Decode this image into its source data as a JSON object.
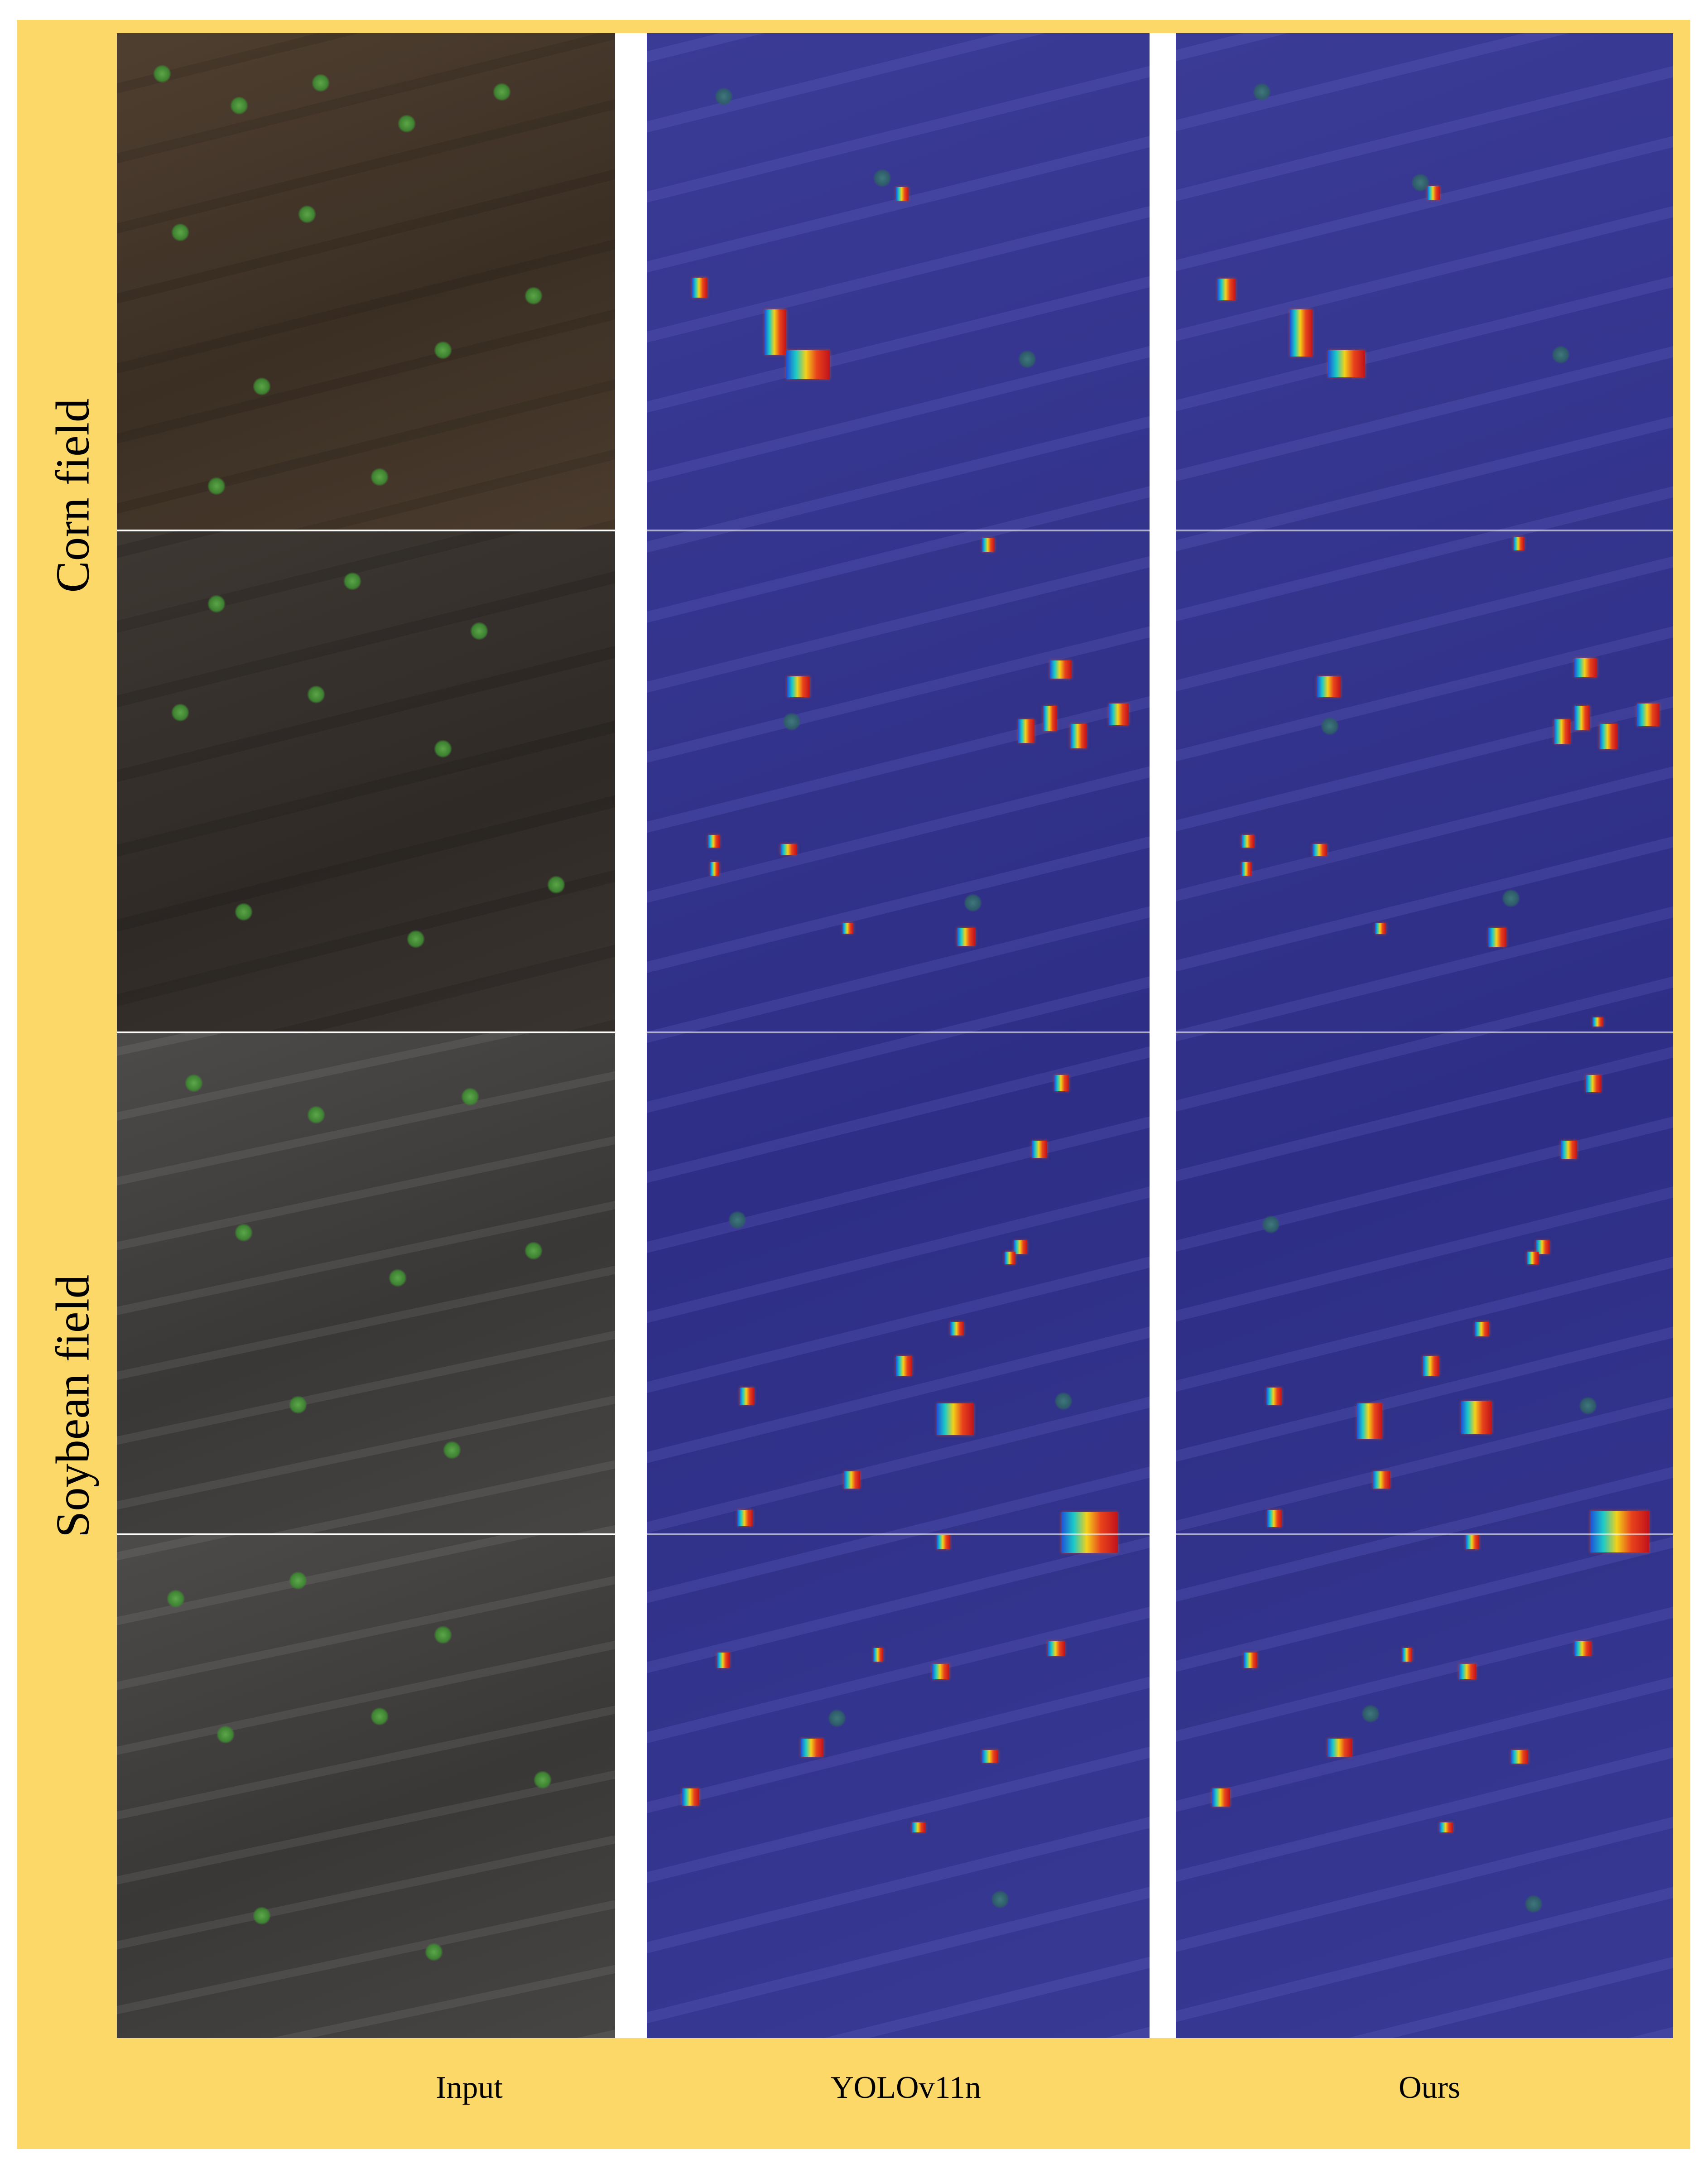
{
  "figure": {
    "row_groups": [
      {
        "label": "Corn field"
      },
      {
        "label": "Soybean field"
      }
    ],
    "columns": [
      {
        "label": "Input"
      },
      {
        "label": "YOLOv11n"
      },
      {
        "label": "Ours"
      }
    ]
  },
  "colors": {
    "frame": "#fcd868",
    "separator": "#ffffff",
    "heatmap_background": "#30318a",
    "heatmap_hot": "#e8431b"
  }
}
